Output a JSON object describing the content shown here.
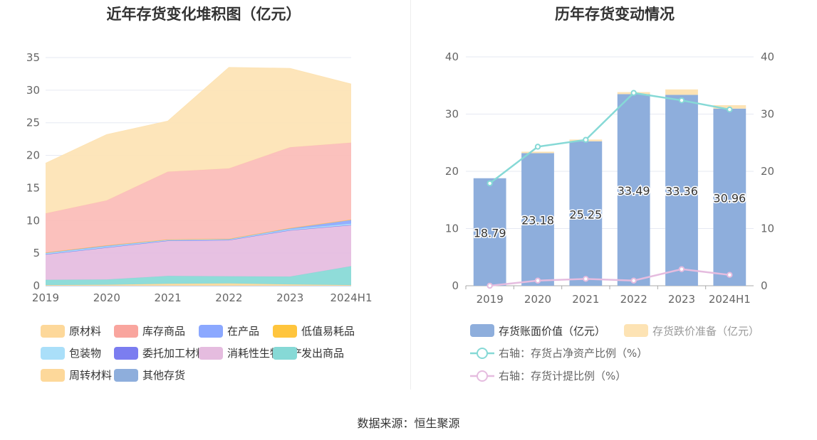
{
  "left_chart": {
    "title": "近年存货变化堆积图（亿元）"
  },
  "right_chart": {
    "title": "历年存货变动情况"
  },
  "source_text": "数据来源：恒生聚源",
  "chart_data": [
    {
      "type": "area",
      "stacked": true,
      "title": "近年存货变化堆积图（亿元）",
      "categories": [
        "2019",
        "2020",
        "2021",
        "2022",
        "2023",
        "2024H1"
      ],
      "ylim": [
        0,
        35
      ],
      "yticks": [
        0,
        5,
        10,
        15,
        20,
        25,
        30,
        35
      ],
      "grid": true,
      "legend_position": "bottom",
      "series": [
        {
          "name": "其他存货",
          "color": "#8eaedc",
          "values": [
            0,
            0,
            0,
            0,
            0,
            0
          ]
        },
        {
          "name": "周转材料",
          "color": "#fdd89a",
          "values": [
            0.1,
            0.15,
            0.3,
            0.35,
            0.2,
            0.1
          ]
        },
        {
          "name": "发出商品",
          "color": "#86d9d6",
          "values": [
            0.8,
            0.8,
            1.2,
            1.1,
            1.2,
            2.9
          ]
        },
        {
          "name": "消耗性生物资产",
          "color": "#e5bcdf",
          "values": [
            3.9,
            4.9,
            5.4,
            5.55,
            7.1,
            6.3
          ]
        },
        {
          "name": "委托加工材料",
          "color": "#7b7df0",
          "values": [
            0.02,
            0.02,
            0.02,
            0.02,
            0.02,
            0.02
          ]
        },
        {
          "name": "包装物",
          "color": "#aadff9",
          "values": [
            0.15,
            0.15,
            0.1,
            0.1,
            0.15,
            0.2
          ]
        },
        {
          "name": "在产品",
          "color": "#8ba8ff",
          "values": [
            0.1,
            0.15,
            0.05,
            0.05,
            0.15,
            0.6
          ]
        },
        {
          "name": "低值易耗品",
          "color": "#ffc53d",
          "values": [
            0.02,
            0.02,
            0.02,
            0.02,
            0.02,
            0.02
          ]
        },
        {
          "name": "库存商品",
          "color": "#fbbcb7",
          "values": [
            6.0,
            6.9,
            10.4,
            10.8,
            12.4,
            11.8
          ]
        },
        {
          "name": "原材料",
          "color": "#fde3b4",
          "values": [
            7.7,
            10.1,
            7.76,
            15.5,
            12.1,
            9.0
          ]
        }
      ],
      "legend_order": [
        "原材料",
        "库存商品",
        "在产品",
        "低值易耗品",
        "包装物",
        "委托加工材料",
        "消耗性生物资产",
        "发出商品",
        "周转材料",
        "其他存货"
      ],
      "legend_colors": {
        "原材料": "#fdd89a",
        "库存商品": "#f9a59e",
        "在产品": "#8ba8ff",
        "低值易耗品": "#ffc53d",
        "包装物": "#aadff9",
        "委托加工材料": "#7b7df0",
        "消耗性生物资产": "#e5bcdf",
        "发出商品": "#86d9d6",
        "周转材料": "#fdd89a",
        "其他存货": "#8eaedc"
      }
    },
    {
      "type": "bar",
      "stacked": true,
      "title": "历年存货变动情况",
      "categories": [
        "2019",
        "2020",
        "2021",
        "2022",
        "2023",
        "2024H1"
      ],
      "ylim": [
        0,
        40
      ],
      "yticks": [
        0,
        10,
        20,
        30,
        40
      ],
      "y2lim": [
        0,
        40
      ],
      "y2ticks": [
        0,
        10,
        20,
        30,
        40
      ],
      "grid": true,
      "legend_position": "bottom",
      "series": [
        {
          "name": "存货账面价值（亿元）",
          "kind": "bar",
          "color": "#8eaedc",
          "values": [
            18.79,
            23.18,
            25.25,
            33.49,
            33.36,
            30.96
          ],
          "labels": [
            "18.79",
            "23.18",
            "25.25",
            "33.49",
            "33.36",
            "30.96"
          ]
        },
        {
          "name": "存货跌价准备（亿元）",
          "kind": "bar",
          "color": "#fde3b4",
          "values": [
            0.0,
            0.25,
            0.3,
            0.35,
            0.95,
            0.6
          ]
        },
        {
          "name": "右轴：存货占净资产比例（%）",
          "kind": "line",
          "axis": "right",
          "color": "#86d9d6",
          "values": [
            17.9,
            24.3,
            25.5,
            33.7,
            32.4,
            30.8
          ]
        },
        {
          "name": "右轴：存货计提比例（%）",
          "kind": "line",
          "axis": "right",
          "color": "#e5bcdf",
          "values": [
            0.0,
            0.9,
            1.2,
            0.9,
            2.9,
            1.9
          ]
        }
      ]
    }
  ]
}
